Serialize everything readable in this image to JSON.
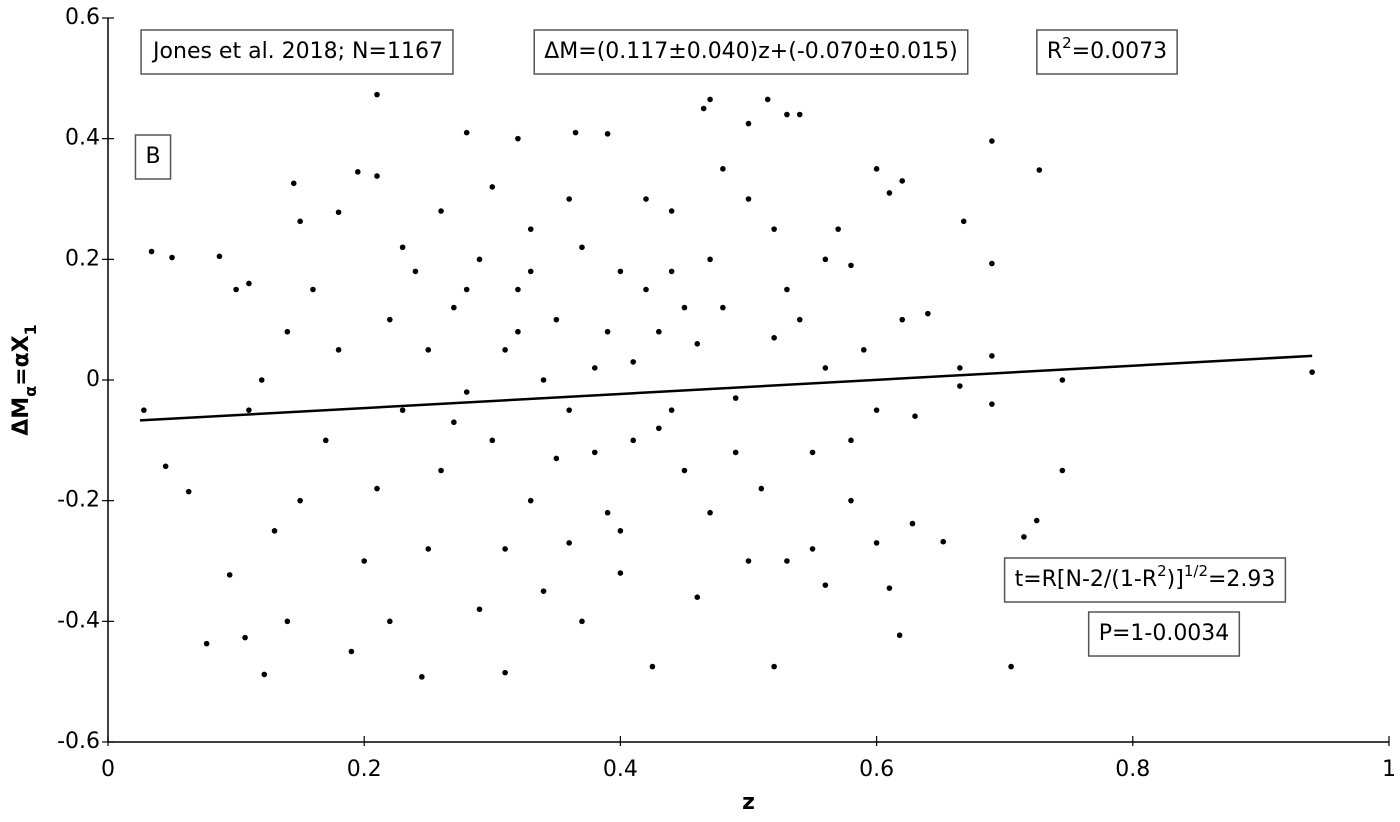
{
  "chart_data": {
    "type": "scatter",
    "x_label": "z",
    "y_label": {
      "parts": [
        "ΔM",
        "α",
        "=αX",
        "1"
      ],
      "script": [
        "normal",
        "sub",
        "normal",
        "sub"
      ]
    },
    "xlim": [
      0,
      1
    ],
    "ylim": [
      -0.6,
      0.6
    ],
    "xticks": [
      0,
      0.2,
      0.4,
      0.6,
      0.8,
      1
    ],
    "yticks": [
      -0.6,
      -0.4,
      -0.2,
      0,
      0.2,
      0.4,
      0.6
    ],
    "color": "#000000",
    "annotations": [
      {
        "parts": [
          "Jones et al. 2018; N=1167"
        ],
        "script": [
          "normal"
        ]
      },
      {
        "parts": [
          "ΔM=(0.117±0.040)z+(-0.070±0.015)"
        ],
        "script": [
          "normal"
        ]
      },
      {
        "parts": [
          "R",
          "2",
          "=0.0073"
        ],
        "script": [
          "normal",
          "sup",
          "normal"
        ]
      },
      {
        "parts": [
          "B"
        ],
        "script": [
          "normal"
        ]
      },
      {
        "parts": [
          "t=R[N-2/(1-R",
          "2",
          ")]",
          "1/2",
          "=2.93"
        ],
        "script": [
          "normal",
          "sup",
          "normal",
          "sup",
          "normal"
        ]
      },
      {
        "parts": [
          "P=1-0.0034"
        ],
        "script": [
          "normal"
        ]
      }
    ],
    "fit": {
      "x": [
        0.025,
        0.94
      ],
      "y": [
        -0.067,
        0.04
      ],
      "color": "#000000"
    },
    "x": [
      0.94,
      0.727,
      0.69,
      0.705,
      0.122,
      0.21,
      0.47,
      0.515,
      0.745,
      0.745,
      0.715,
      0.725,
      0.668,
      0.69,
      0.69,
      0.69,
      0.618,
      0.628,
      0.652,
      0.665,
      0.665,
      0.028,
      0.034,
      0.05,
      0.045,
      0.063,
      0.077,
      0.087,
      0.095,
      0.107,
      0.1,
      0.11,
      0.28,
      0.32,
      0.39,
      0.365,
      0.5,
      0.53,
      0.54,
      0.465,
      0.245,
      0.31,
      0.425,
      0.52,
      0.145,
      0.15,
      0.195,
      0.21,
      0.18,
      0.6,
      0.61,
      0.62,
      0.6,
      0.61,
      0.56,
      0.56,
      0.58,
      0.22,
      0.23,
      0.25,
      0.26,
      0.27,
      0.28,
      0.29,
      0.3,
      0.31,
      0.32,
      0.33,
      0.34,
      0.35,
      0.36,
      0.37,
      0.38,
      0.39,
      0.4,
      0.41,
      0.42,
      0.43,
      0.44,
      0.45,
      0.46,
      0.47,
      0.48,
      0.49,
      0.5,
      0.51,
      0.52,
      0.53,
      0.54,
      0.55,
      0.56,
      0.57,
      0.58,
      0.59,
      0.2,
      0.18,
      0.17,
      0.16,
      0.15,
      0.14,
      0.13,
      0.12,
      0.11,
      0.24,
      0.26,
      0.3,
      0.33,
      0.36,
      0.42,
      0.44,
      0.48,
      0.52,
      0.34,
      0.37,
      0.4,
      0.29,
      0.25,
      0.22,
      0.46,
      0.5,
      0.55,
      0.19,
      0.14,
      0.58,
      0.62,
      0.63,
      0.64,
      0.6,
      0.35,
      0.32,
      0.38,
      0.41,
      0.27,
      0.43,
      0.31,
      0.39,
      0.45,
      0.23,
      0.21,
      0.47,
      0.53,
      0.36,
      0.28,
      0.33,
      0.4,
      0.44,
      0.49
    ],
    "values": [
      0.013,
      0.348,
      0.396,
      -0.475,
      -0.488,
      0.473,
      0.465,
      0.465,
      -0.15,
      0,
      -0.26,
      -0.233,
      0.263,
      0.193,
      0.04,
      -0.04,
      -0.423,
      -0.238,
      -0.268,
      -0.01,
      0.02,
      -0.05,
      0.213,
      0.203,
      -0.143,
      -0.185,
      -0.437,
      0.205,
      -0.323,
      -0.427,
      0.15,
      0.16,
      0.41,
      0.4,
      0.408,
      0.41,
      0.425,
      0.44,
      0.44,
      0.45,
      -0.492,
      -0.485,
      -0.475,
      -0.475,
      0.326,
      0.263,
      0.345,
      0.338,
      0.278,
      0.35,
      0.31,
      0.33,
      -0.27,
      -0.345,
      -0.34,
      0.2,
      0.19,
      0.1,
      -0.05,
      0.05,
      -0.15,
      0.12,
      -0.02,
      0.2,
      -0.1,
      0.05,
      0.15,
      -0.2,
      0,
      0.1,
      -0.05,
      0.22,
      -0.12,
      0.08,
      -0.25,
      0.03,
      0.15,
      -0.08,
      0.18,
      -0.15,
      0.06,
      -0.22,
      0.12,
      -0.03,
      0.3,
      -0.18,
      0.07,
      -0.3,
      0.1,
      -0.12,
      0.02,
      0.25,
      -0.1,
      0.05,
      -0.3,
      0.05,
      -0.1,
      0.15,
      -0.2,
      0.08,
      -0.25,
      0,
      -0.05,
      0.18,
      0.28,
      0.32,
      0.25,
      0.3,
      0.3,
      0.28,
      0.35,
      0.25,
      -0.35,
      -0.4,
      -0.32,
      -0.38,
      -0.28,
      -0.4,
      -0.36,
      -0.3,
      -0.28,
      -0.45,
      -0.4,
      -0.2,
      0.1,
      -0.06,
      0.11,
      -0.05,
      -0.13,
      0.08,
      0.02,
      -0.1,
      -0.07,
      0.08,
      -0.28,
      -0.22,
      0.12,
      0.22,
      -0.18,
      0.2,
      0.15,
      -0.27,
      0.15,
      0.18,
      0.18,
      -0.05,
      -0.12
    ]
  }
}
